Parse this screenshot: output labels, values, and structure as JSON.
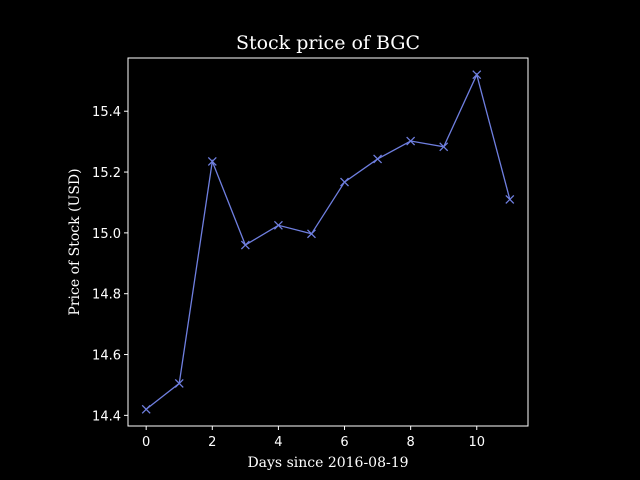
{
  "chart_data": {
    "type": "line",
    "title": "Stock price of BGC",
    "xlabel": "Days since 2016-08-19",
    "ylabel": "Price of Stock (USD)",
    "x": [
      0,
      1,
      2,
      3,
      4,
      5,
      6,
      7,
      8,
      9,
      10,
      11
    ],
    "series": [
      {
        "values": [
          14.42,
          14.505,
          15.235,
          14.96,
          15.025,
          14.997,
          15.167,
          15.243,
          15.302,
          15.283,
          15.52,
          15.11
        ],
        "color": "#6f7fe0",
        "marker": "x"
      }
    ],
    "xlim": [
      -0.55,
      11.55
    ],
    "ylim": [
      14.365,
      15.575
    ],
    "xticks": [
      0,
      2,
      4,
      6,
      8,
      10
    ],
    "xtick_labels": [
      "0",
      "2",
      "4",
      "6",
      "8",
      "10"
    ],
    "yticks": [
      14.4,
      14.6,
      14.8,
      15.0,
      15.2,
      15.4
    ],
    "ytick_labels": [
      "14.4",
      "14.6",
      "14.8",
      "15.0",
      "15.2",
      "15.4"
    ],
    "grid": false,
    "background": "#000000",
    "foreground": "#ffffff"
  }
}
